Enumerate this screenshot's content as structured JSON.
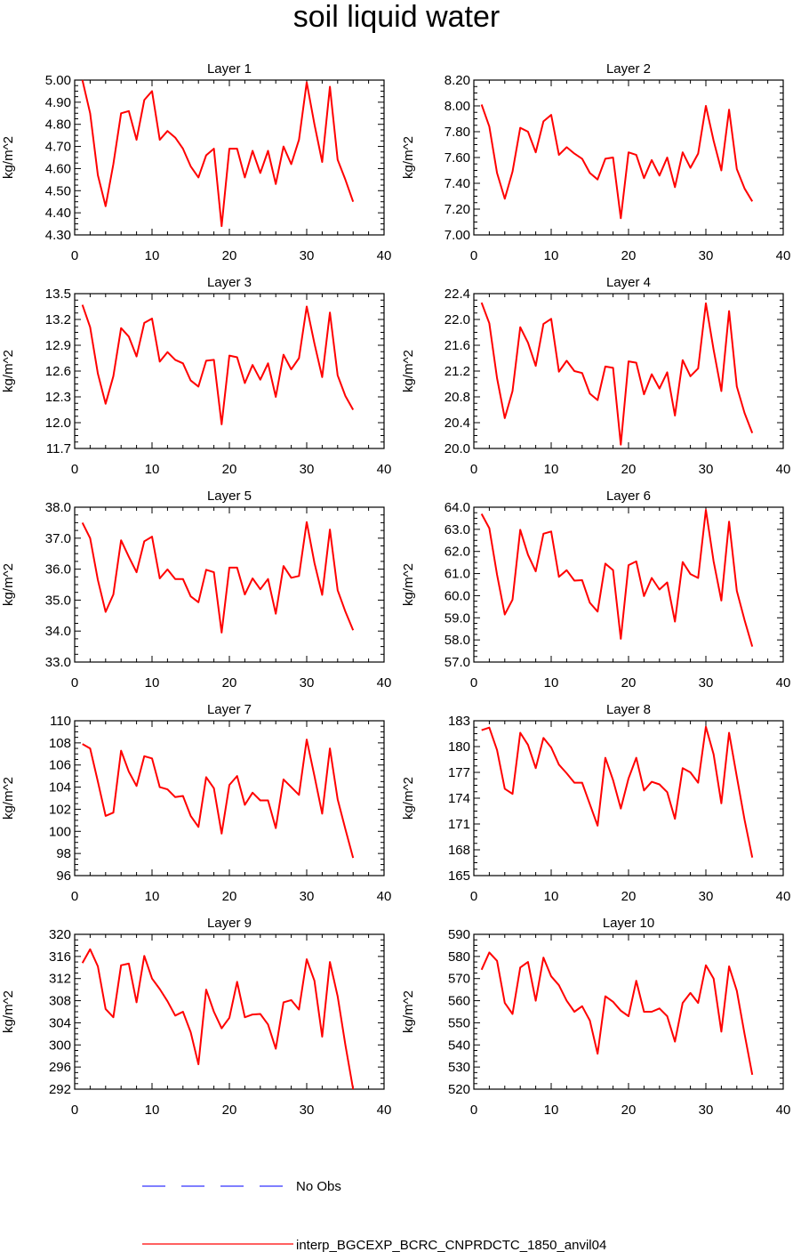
{
  "title": "soil liquid water",
  "colors": {
    "model": "#ff0000",
    "obs": "#3333ff",
    "axis": "#000000"
  },
  "legend": [
    {
      "label": "No Obs",
      "style": "dashed",
      "color": "#3333ff"
    },
    {
      "label": "interp_BGCEXP_BCRC_CNPRDCTC_1850_anvil04",
      "style": "solid",
      "color": "#ff0000"
    }
  ],
  "chart_data": [
    {
      "type": "line",
      "title": "Layer 1",
      "ylabel": "kg/m^2",
      "xlim": [
        0,
        40
      ],
      "xticks": [
        "0",
        "10",
        "20",
        "30",
        "40"
      ],
      "ylim": [
        4.3,
        5.0
      ],
      "yticks": [
        "4.30",
        "4.40",
        "4.50",
        "4.60",
        "4.70",
        "4.80",
        "4.90",
        "5.00"
      ],
      "series": [
        {
          "x": [
            1,
            2,
            3,
            4,
            5,
            6,
            7,
            8,
            9,
            10,
            11,
            12,
            13,
            14,
            15,
            16,
            17,
            18,
            19,
            20,
            21,
            22,
            23,
            24,
            25,
            26,
            27,
            28,
            29,
            30,
            31,
            32,
            33,
            34,
            35,
            36
          ],
          "values": [
            5.0,
            4.85,
            4.57,
            4.43,
            4.62,
            4.85,
            4.86,
            4.73,
            4.91,
            4.95,
            4.73,
            4.77,
            4.74,
            4.69,
            4.61,
            4.56,
            4.66,
            4.69,
            4.34,
            4.69,
            4.69,
            4.56,
            4.68,
            4.58,
            4.68,
            4.53,
            4.7,
            4.62,
            4.73,
            4.99,
            4.8,
            4.63,
            4.97,
            4.64,
            4.55,
            4.45
          ]
        }
      ]
    },
    {
      "type": "line",
      "title": "Layer 2",
      "ylabel": "kg/m^2",
      "xlim": [
        0,
        40
      ],
      "xticks": [
        "0",
        "10",
        "20",
        "30",
        "40"
      ],
      "ylim": [
        7.0,
        8.2
      ],
      "yticks": [
        "7.00",
        "7.20",
        "7.40",
        "7.60",
        "7.80",
        "8.00",
        "8.20"
      ],
      "series": [
        {
          "x": [
            1,
            2,
            3,
            4,
            5,
            6,
            7,
            8,
            9,
            10,
            11,
            12,
            13,
            14,
            15,
            16,
            17,
            18,
            19,
            20,
            21,
            22,
            23,
            24,
            25,
            26,
            27,
            28,
            29,
            30,
            31,
            32,
            33,
            34,
            35,
            36
          ],
          "values": [
            8.01,
            7.84,
            7.48,
            7.28,
            7.49,
            7.83,
            7.8,
            7.64,
            7.88,
            7.93,
            7.62,
            7.68,
            7.63,
            7.59,
            7.48,
            7.43,
            7.59,
            7.6,
            7.13,
            7.64,
            7.62,
            7.44,
            7.58,
            7.46,
            7.6,
            7.37,
            7.64,
            7.52,
            7.63,
            8.0,
            7.73,
            7.5,
            7.97,
            7.51,
            7.36,
            7.26
          ]
        }
      ]
    },
    {
      "type": "line",
      "title": "Layer 3",
      "ylabel": "kg/m^2",
      "xlim": [
        0,
        40
      ],
      "xticks": [
        "0",
        "10",
        "20",
        "30",
        "40"
      ],
      "ylim": [
        11.7,
        13.5
      ],
      "yticks": [
        "11.7",
        "12.0",
        "12.3",
        "12.6",
        "12.9",
        "13.2",
        "13.5"
      ],
      "series": [
        {
          "x": [
            1,
            2,
            3,
            4,
            5,
            6,
            7,
            8,
            9,
            10,
            11,
            12,
            13,
            14,
            15,
            16,
            17,
            18,
            19,
            20,
            21,
            22,
            23,
            24,
            25,
            26,
            27,
            28,
            29,
            30,
            31,
            32,
            33,
            34,
            35,
            36
          ],
          "values": [
            13.37,
            13.11,
            12.57,
            12.22,
            12.54,
            13.1,
            13.0,
            12.77,
            13.16,
            13.21,
            12.71,
            12.82,
            12.73,
            12.69,
            12.49,
            12.42,
            12.72,
            12.73,
            11.98,
            12.78,
            12.76,
            12.46,
            12.67,
            12.5,
            12.69,
            12.3,
            12.79,
            12.62,
            12.75,
            13.35,
            12.92,
            12.53,
            13.28,
            12.55,
            12.31,
            12.15
          ]
        }
      ]
    },
    {
      "type": "line",
      "title": "Layer 4",
      "ylabel": "kg/m^2",
      "xlim": [
        0,
        40
      ],
      "xticks": [
        "0",
        "10",
        "20",
        "30",
        "40"
      ],
      "ylim": [
        20.0,
        22.4
      ],
      "yticks": [
        "20.0",
        "20.4",
        "20.8",
        "21.2",
        "21.6",
        "22.0",
        "22.4"
      ],
      "series": [
        {
          "x": [
            1,
            2,
            3,
            4,
            5,
            6,
            7,
            8,
            9,
            10,
            11,
            12,
            13,
            14,
            15,
            16,
            17,
            18,
            19,
            20,
            21,
            22,
            23,
            24,
            25,
            26,
            27,
            28,
            29,
            30,
            31,
            32,
            33,
            34,
            35,
            36
          ],
          "values": [
            22.26,
            21.94,
            21.09,
            20.47,
            20.89,
            21.88,
            21.64,
            21.28,
            21.93,
            22.01,
            21.19,
            21.36,
            21.2,
            21.17,
            20.85,
            20.75,
            21.27,
            21.25,
            20.06,
            21.35,
            21.33,
            20.84,
            21.15,
            20.93,
            21.18,
            20.51,
            21.37,
            21.12,
            21.24,
            22.25,
            21.53,
            20.89,
            22.13,
            20.96,
            20.55,
            20.24
          ]
        }
      ]
    },
    {
      "type": "line",
      "title": "Layer 5",
      "ylabel": "kg/m^2",
      "xlim": [
        0,
        40
      ],
      "xticks": [
        "0",
        "10",
        "20",
        "30",
        "40"
      ],
      "ylim": [
        33.0,
        38.0
      ],
      "yticks": [
        "33.0",
        "34.0",
        "35.0",
        "36.0",
        "37.0",
        "38.0"
      ],
      "series": [
        {
          "x": [
            1,
            2,
            3,
            4,
            5,
            6,
            7,
            8,
            9,
            10,
            11,
            12,
            13,
            14,
            15,
            16,
            17,
            18,
            19,
            20,
            21,
            22,
            23,
            24,
            25,
            26,
            27,
            28,
            29,
            30,
            31,
            32,
            33,
            34,
            35,
            36
          ],
          "values": [
            37.5,
            37.0,
            35.65,
            34.62,
            35.18,
            36.93,
            36.4,
            35.9,
            36.9,
            37.05,
            35.7,
            35.99,
            35.68,
            35.68,
            35.12,
            34.93,
            35.98,
            35.9,
            33.95,
            36.05,
            36.05,
            35.18,
            35.7,
            35.35,
            35.68,
            34.56,
            36.1,
            35.72,
            35.78,
            37.52,
            36.2,
            35.17,
            37.28,
            35.32,
            34.63,
            34.03
          ]
        }
      ]
    },
    {
      "type": "line",
      "title": "Layer 6",
      "ylabel": "kg/m^2",
      "xlim": [
        0,
        40
      ],
      "xticks": [
        "0",
        "10",
        "20",
        "30",
        "40"
      ],
      "ylim": [
        57.0,
        64.0
      ],
      "yticks": [
        "57.0",
        "58.0",
        "59.0",
        "60.0",
        "61.0",
        "62.0",
        "63.0",
        "64.0"
      ],
      "series": [
        {
          "x": [
            1,
            2,
            3,
            4,
            5,
            6,
            7,
            8,
            9,
            10,
            11,
            12,
            13,
            14,
            15,
            16,
            17,
            18,
            19,
            20,
            21,
            22,
            23,
            24,
            25,
            26,
            27,
            28,
            29,
            30,
            31,
            32,
            33,
            34,
            35,
            36
          ],
          "values": [
            63.7,
            63.05,
            60.95,
            59.15,
            59.82,
            62.98,
            61.85,
            61.1,
            62.8,
            62.9,
            60.85,
            61.15,
            60.68,
            60.7,
            59.68,
            59.28,
            61.45,
            61.15,
            58.05,
            61.38,
            61.55,
            59.98,
            60.8,
            60.28,
            60.6,
            58.83,
            61.52,
            60.98,
            60.8,
            63.88,
            61.55,
            59.78,
            63.35,
            60.22,
            58.9,
            57.7
          ]
        }
      ]
    },
    {
      "type": "line",
      "title": "Layer 7",
      "ylabel": "kg/m^2",
      "xlim": [
        0,
        40
      ],
      "xticks": [
        "0",
        "10",
        "20",
        "30",
        "40"
      ],
      "ylim": [
        96,
        110
      ],
      "yticks": [
        "96",
        "98",
        "100",
        "102",
        "104",
        "106",
        "108",
        "110"
      ],
      "series": [
        {
          "x": [
            1,
            2,
            3,
            4,
            5,
            6,
            7,
            8,
            9,
            10,
            11,
            12,
            13,
            14,
            15,
            16,
            17,
            18,
            19,
            20,
            21,
            22,
            23,
            24,
            25,
            26,
            27,
            28,
            29,
            30,
            31,
            32,
            33,
            34,
            35,
            36
          ],
          "values": [
            107.9,
            107.5,
            104.5,
            101.4,
            101.7,
            107.3,
            105.4,
            104.1,
            106.8,
            106.6,
            104.0,
            103.8,
            103.1,
            103.2,
            101.4,
            100.4,
            104.9,
            103.9,
            99.8,
            104.2,
            105.0,
            102.4,
            103.5,
            102.8,
            102.8,
            100.3,
            104.7,
            104.0,
            103.3,
            108.3,
            105.0,
            101.6,
            107.5,
            102.9,
            100.2,
            97.6
          ]
        }
      ]
    },
    {
      "type": "line",
      "title": "Layer 8",
      "ylabel": "kg/m^2",
      "xlim": [
        0,
        40
      ],
      "xticks": [
        "0",
        "10",
        "20",
        "30",
        "40"
      ],
      "ylim": [
        165,
        183
      ],
      "yticks": [
        "165",
        "168",
        "171",
        "174",
        "177",
        "180",
        "183"
      ],
      "series": [
        {
          "x": [
            1,
            2,
            3,
            4,
            5,
            6,
            7,
            8,
            9,
            10,
            11,
            12,
            13,
            14,
            15,
            16,
            17,
            18,
            19,
            20,
            21,
            22,
            23,
            24,
            25,
            26,
            27,
            28,
            29,
            30,
            31,
            32,
            33,
            34,
            35,
            36
          ],
          "values": [
            181.9,
            182.2,
            179.6,
            175.1,
            174.5,
            181.6,
            180.2,
            177.5,
            181.0,
            179.9,
            177.9,
            176.9,
            175.8,
            175.8,
            173.3,
            170.8,
            178.7,
            176.1,
            172.8,
            176.3,
            178.7,
            174.9,
            175.9,
            175.6,
            174.7,
            171.6,
            177.5,
            177.0,
            175.8,
            182.3,
            179.1,
            173.4,
            181.6,
            176.5,
            171.5,
            167.1
          ]
        }
      ]
    },
    {
      "type": "line",
      "title": "Layer 9",
      "ylabel": "kg/m^2",
      "xlim": [
        0,
        40
      ],
      "xticks": [
        "0",
        "10",
        "20",
        "30",
        "40"
      ],
      "ylim": [
        292,
        320
      ],
      "yticks": [
        "292",
        "296",
        "300",
        "304",
        "308",
        "312",
        "316",
        "320"
      ],
      "series": [
        {
          "x": [
            1,
            2,
            3,
            4,
            5,
            6,
            7,
            8,
            9,
            10,
            11,
            12,
            13,
            14,
            15,
            16,
            17,
            18,
            19,
            20,
            21,
            22,
            23,
            24,
            25,
            26,
            27,
            28,
            29,
            30,
            31,
            32,
            33,
            34,
            35,
            36
          ],
          "values": [
            314.8,
            317.3,
            314.2,
            306.5,
            305.0,
            314.4,
            314.7,
            307.7,
            316.1,
            312.0,
            310.1,
            307.9,
            305.3,
            306.0,
            302.3,
            296.5,
            310.0,
            306.0,
            303.0,
            304.9,
            311.4,
            305.0,
            305.5,
            305.6,
            303.7,
            299.3,
            307.7,
            308.1,
            306.4,
            315.5,
            311.6,
            301.5,
            315.0,
            308.8,
            300.0,
            292.0
          ]
        }
      ]
    },
    {
      "type": "line",
      "title": "Layer 10",
      "ylabel": "kg/m^2",
      "xlim": [
        0,
        40
      ],
      "xticks": [
        "0",
        "10",
        "20",
        "30",
        "40"
      ],
      "ylim": [
        520,
        590
      ],
      "yticks": [
        "520",
        "530",
        "540",
        "550",
        "560",
        "570",
        "580",
        "590"
      ],
      "series": [
        {
          "x": [
            1,
            2,
            3,
            4,
            5,
            6,
            7,
            8,
            9,
            10,
            11,
            12,
            13,
            14,
            15,
            16,
            17,
            18,
            19,
            20,
            21,
            22,
            23,
            24,
            25,
            26,
            27,
            28,
            29,
            30,
            31,
            32,
            33,
            34,
            35,
            36
          ],
          "values": [
            574.0,
            581.8,
            578.0,
            559.0,
            554.0,
            575.0,
            577.5,
            560.0,
            579.5,
            571.0,
            567.0,
            560.0,
            555.0,
            557.5,
            551.0,
            536.0,
            562.0,
            559.5,
            555.5,
            553.0,
            569.0,
            555.0,
            555.0,
            556.5,
            553.0,
            541.5,
            559.0,
            563.5,
            559.0,
            576.0,
            570.0,
            546.0,
            575.5,
            564.5,
            545.0,
            526.5
          ]
        }
      ]
    }
  ]
}
